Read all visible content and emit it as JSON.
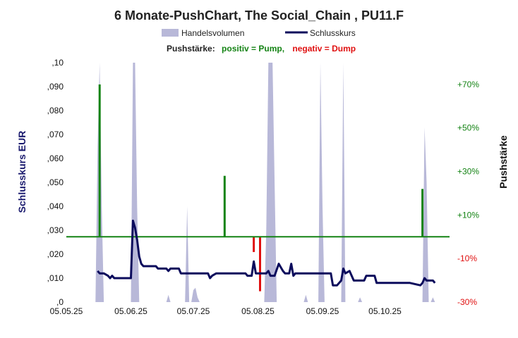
{
  "chart_data": {
    "type": "line",
    "title": "6 Monate-PushChart,  The Social_Chain , PU11.F",
    "ylabel": "Schlusskurs EUR",
    "y2label": "Pushstärke",
    "ylim": [
      0,
      0.1
    ],
    "y2lim": [
      -30,
      80
    ],
    "legend": {
      "placement": "top",
      "entries": [
        {
          "name": "Handelsvolumen",
          "color": "#b8b8d8",
          "kind": "area"
        },
        {
          "name": "Schlusskurs",
          "color": "#0b0b5c",
          "kind": "line"
        }
      ]
    },
    "push_note": {
      "label": "Pushstärke:",
      "positive": "positiv = Pump,",
      "negative": "negativ = Dump",
      "positive_color": "#148314",
      "negative_color": "#e01010"
    },
    "x_ticks": [
      "05.05.25",
      "05.06.25",
      "05.07.25",
      "05.08.25",
      "05.09.25",
      "05.10.25"
    ],
    "x_tick_days": [
      0,
      31,
      61,
      92,
      123,
      153
    ],
    "y_ticks": [
      ",0",
      ",010",
      ",020",
      ",030",
      ",040",
      ",050",
      ",060",
      ",070",
      ",080",
      ",090",
      ",10"
    ],
    "y_tick_values": [
      0,
      0.01,
      0.02,
      0.03,
      0.04,
      0.05,
      0.06,
      0.07,
      0.08,
      0.09,
      0.1
    ],
    "y2_ticks": [
      "-30%",
      "-10%",
      "+10%",
      "+30%",
      "+50%",
      "+70%"
    ],
    "y2_tick_values": [
      -30,
      -10,
      10,
      30,
      50,
      70
    ],
    "series": [
      {
        "name": "Schlusskurs",
        "color": "#0b0b5c",
        "points": [
          [
            15,
            0.013
          ],
          [
            16,
            0.012
          ],
          [
            18,
            0.012
          ],
          [
            20,
            0.011
          ],
          [
            21,
            0.01
          ],
          [
            22,
            0.011
          ],
          [
            23,
            0.01
          ],
          [
            26,
            0.01
          ],
          [
            29,
            0.01
          ],
          [
            31,
            0.01
          ],
          [
            32,
            0.034
          ],
          [
            33,
            0.031
          ],
          [
            34,
            0.026
          ],
          [
            35,
            0.019
          ],
          [
            36,
            0.016
          ],
          [
            37,
            0.015
          ],
          [
            40,
            0.015
          ],
          [
            43,
            0.015
          ],
          [
            44,
            0.014
          ],
          [
            46,
            0.014
          ],
          [
            48,
            0.014
          ],
          [
            49,
            0.013
          ],
          [
            50,
            0.014
          ],
          [
            54,
            0.014
          ],
          [
            55,
            0.012
          ],
          [
            58,
            0.012
          ],
          [
            66,
            0.012
          ],
          [
            68,
            0.012
          ],
          [
            69,
            0.01
          ],
          [
            70,
            0.011
          ],
          [
            72,
            0.012
          ],
          [
            86,
            0.012
          ],
          [
            87,
            0.011
          ],
          [
            89,
            0.011
          ],
          [
            90,
            0.017
          ],
          [
            91,
            0.012
          ],
          [
            94,
            0.012
          ],
          [
            96,
            0.012
          ],
          [
            97,
            0.013
          ],
          [
            98,
            0.011
          ],
          [
            100,
            0.011
          ],
          [
            102,
            0.016
          ],
          [
            104,
            0.013
          ],
          [
            105,
            0.012
          ],
          [
            107,
            0.012
          ],
          [
            108,
            0.016
          ],
          [
            109,
            0.011
          ],
          [
            110,
            0.012
          ],
          [
            117,
            0.012
          ],
          [
            127,
            0.012
          ],
          [
            128,
            0.007
          ],
          [
            129,
            0.007
          ],
          [
            130,
            0.007
          ],
          [
            132,
            0.009
          ],
          [
            133,
            0.014
          ],
          [
            134,
            0.012
          ],
          [
            136,
            0.013
          ],
          [
            137,
            0.011
          ],
          [
            138,
            0.009
          ],
          [
            143,
            0.009
          ],
          [
            144,
            0.011
          ],
          [
            148,
            0.011
          ],
          [
            149,
            0.008
          ],
          [
            154,
            0.008
          ],
          [
            165,
            0.008
          ],
          [
            170,
            0.007
          ],
          [
            171,
            0.008
          ],
          [
            172,
            0.01
          ],
          [
            173,
            0.009
          ],
          [
            174,
            0.009
          ],
          [
            175,
            0.009
          ],
          [
            176,
            0.009
          ],
          [
            177,
            0.008
          ]
        ]
      },
      {
        "name": "Handelsvolumen",
        "color": "#b8b8d8",
        "points": [
          [
            14,
            0
          ],
          [
            15,
            0.065
          ],
          [
            16,
            0.1
          ],
          [
            17,
            0.04
          ],
          [
            18,
            0
          ],
          [
            31,
            0
          ],
          [
            32,
            0.1
          ],
          [
            33,
            0.1
          ],
          [
            34,
            0.04
          ],
          [
            35,
            0
          ],
          [
            48,
            0
          ],
          [
            49,
            0.003
          ],
          [
            50,
            0
          ],
          [
            57,
            0
          ],
          [
            58,
            0.04
          ],
          [
            59,
            0
          ],
          [
            60,
            0
          ],
          [
            61,
            0.005
          ],
          [
            62,
            0.006
          ],
          [
            63,
            0.002
          ],
          [
            64,
            0
          ],
          [
            95,
            0
          ],
          [
            96,
            0.03
          ],
          [
            97,
            0.1
          ],
          [
            99,
            0.1
          ],
          [
            100,
            0.05
          ],
          [
            101,
            0
          ],
          [
            114,
            0
          ],
          [
            115,
            0.003
          ],
          [
            116,
            0
          ],
          [
            121,
            0
          ],
          [
            122,
            0.1
          ],
          [
            123,
            0.04
          ],
          [
            124,
            0
          ],
          [
            132,
            0
          ],
          [
            133,
            0.1
          ],
          [
            134,
            0
          ],
          [
            140,
            0
          ],
          [
            141,
            0.002
          ],
          [
            142,
            0
          ],
          [
            171,
            0
          ],
          [
            172,
            0.073
          ],
          [
            173,
            0.05
          ],
          [
            174,
            0
          ],
          [
            175,
            0
          ],
          [
            176,
            0.002
          ],
          [
            177,
            0
          ]
        ]
      }
    ],
    "push_bars": [
      {
        "day": 16,
        "value": 70,
        "color": "#148314"
      },
      {
        "day": 76,
        "value": 28,
        "color": "#148314"
      },
      {
        "day": 90,
        "value": -7,
        "color": "#e01010"
      },
      {
        "day": 93,
        "value": -25,
        "color": "#e01010"
      },
      {
        "day": 171,
        "value": 22,
        "color": "#148314"
      }
    ],
    "baseline": {
      "value": 0,
      "color": "#148314"
    }
  }
}
